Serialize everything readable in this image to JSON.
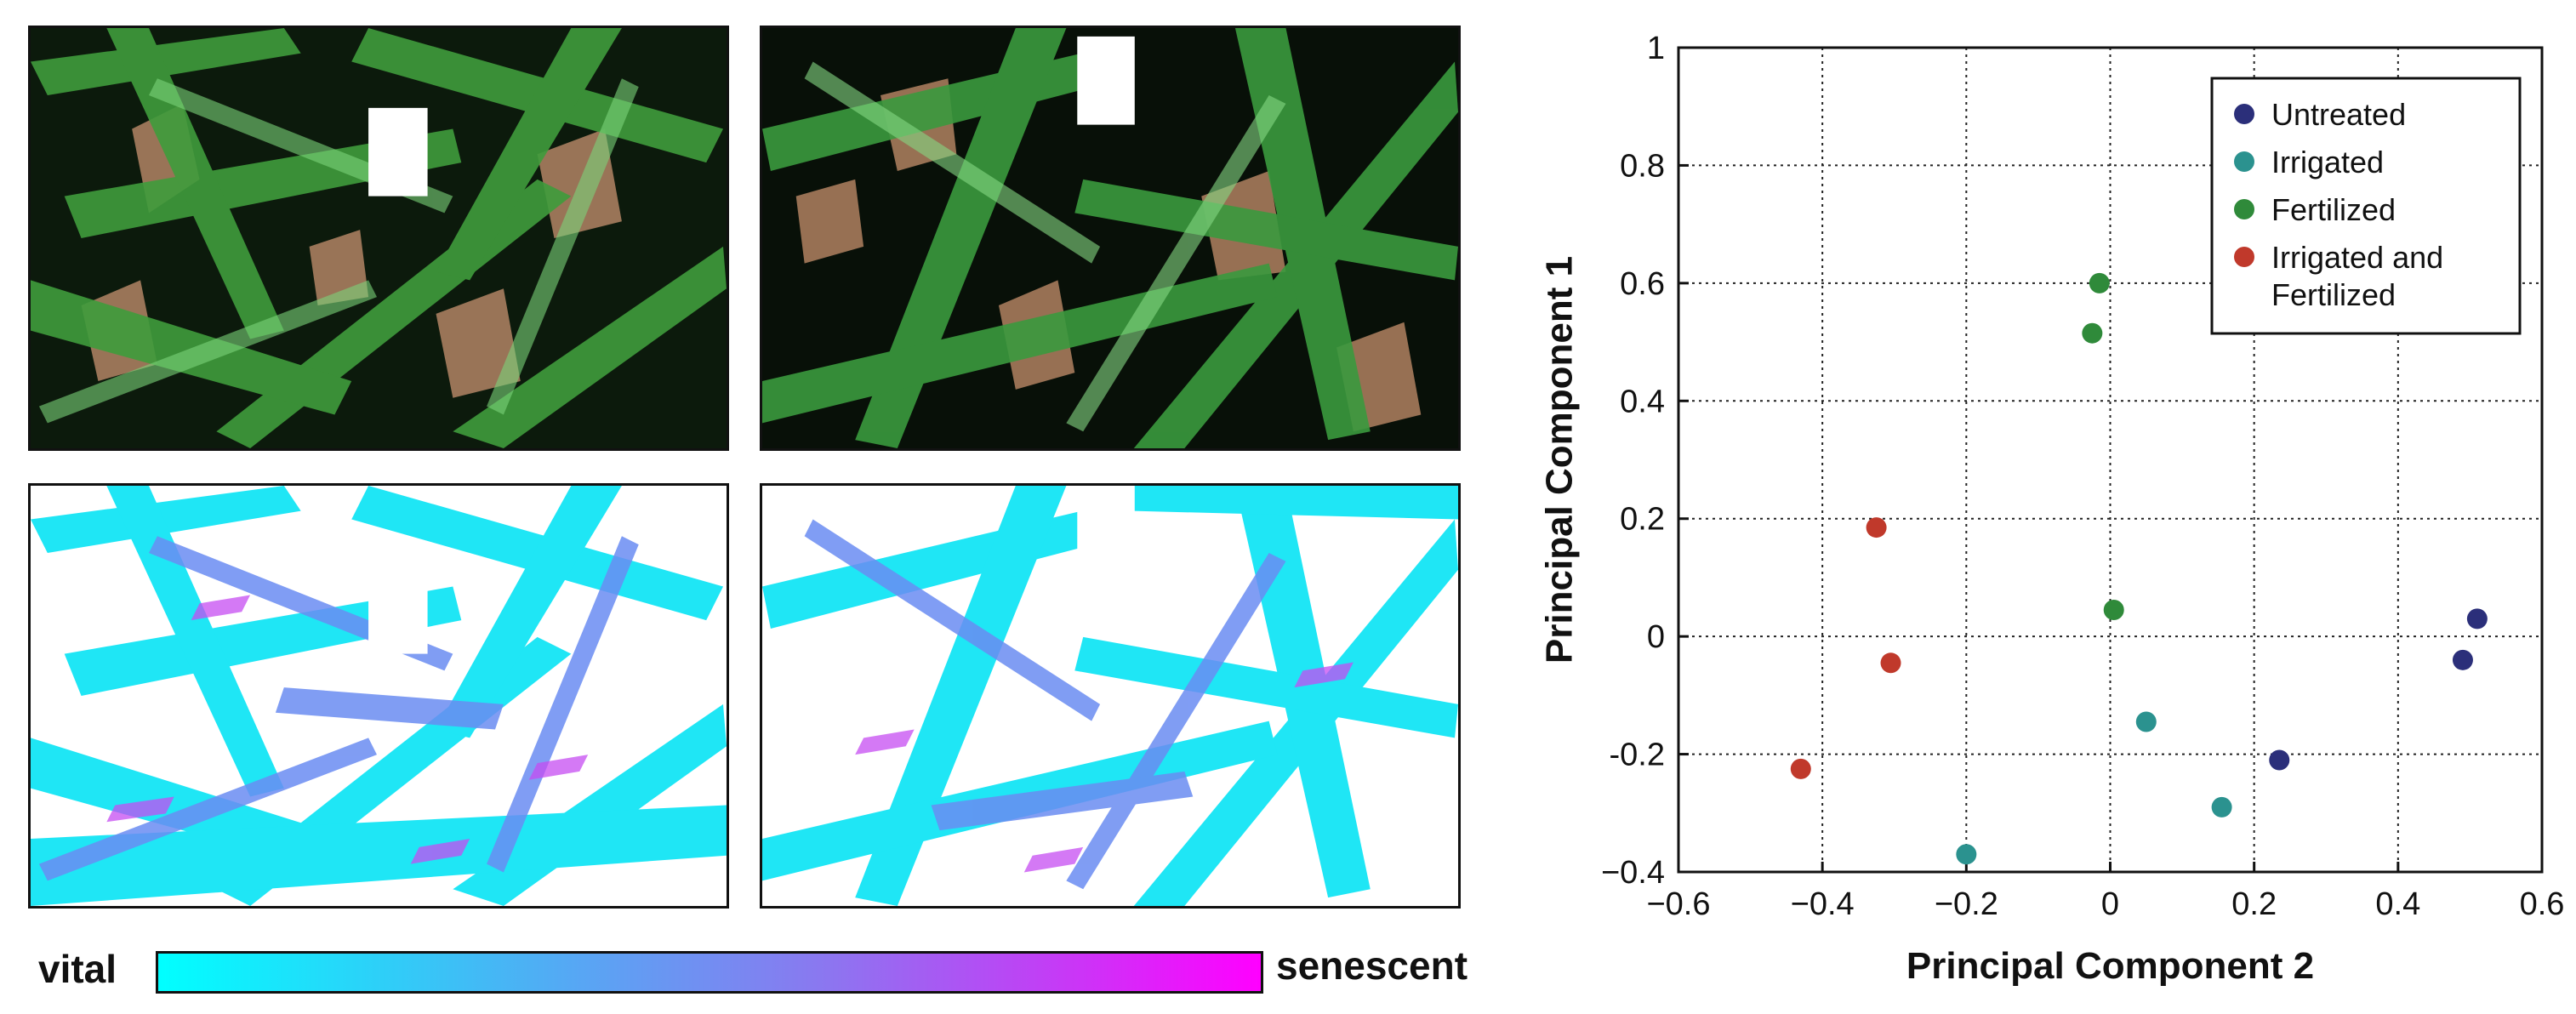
{
  "colorbar": {
    "left_label": "vital",
    "right_label": "senescent"
  },
  "chart_data": {
    "type": "scatter",
    "xlabel": "Principal Component 2",
    "ylabel": "Principal Component 1",
    "xlim": [
      -0.6,
      0.6
    ],
    "ylim": [
      -0.4,
      1.0
    ],
    "xticks": [
      -0.6,
      -0.4,
      -0.2,
      0,
      0.2,
      0.4,
      0.6
    ],
    "yticks": [
      -0.4,
      -0.2,
      0,
      0.2,
      0.4,
      0.6,
      0.8,
      1
    ],
    "xtick_labels": [
      "−0.6",
      "−0.4",
      "−0.2",
      "0",
      "0.2",
      "0.4",
      "0.6"
    ],
    "ytick_labels": [
      "−0.4",
      "-0.2",
      "0",
      "0.2",
      "0.4",
      "0.6",
      "0.8",
      "1"
    ],
    "grid": true,
    "legend_position": "top-right",
    "series": [
      {
        "name": "Untreated",
        "color": "#2b2f7a",
        "points": [
          [
            0.51,
            0.03
          ],
          [
            0.49,
            -0.04
          ],
          [
            0.235,
            -0.21
          ]
        ]
      },
      {
        "name": "Irrigated",
        "color": "#2b928f",
        "points": [
          [
            0.05,
            -0.145
          ],
          [
            0.155,
            -0.29
          ],
          [
            -0.2,
            -0.37
          ]
        ]
      },
      {
        "name": "Fertilized",
        "color": "#2f8a3a",
        "points": [
          [
            -0.015,
            0.6
          ],
          [
            -0.025,
            0.515
          ],
          [
            0.005,
            0.045
          ]
        ]
      },
      {
        "name": "Irrigated and\nFertilized",
        "color": "#c0392b",
        "points": [
          [
            -0.325,
            0.185
          ],
          [
            -0.305,
            -0.045
          ],
          [
            -0.43,
            -0.225
          ]
        ]
      }
    ]
  }
}
